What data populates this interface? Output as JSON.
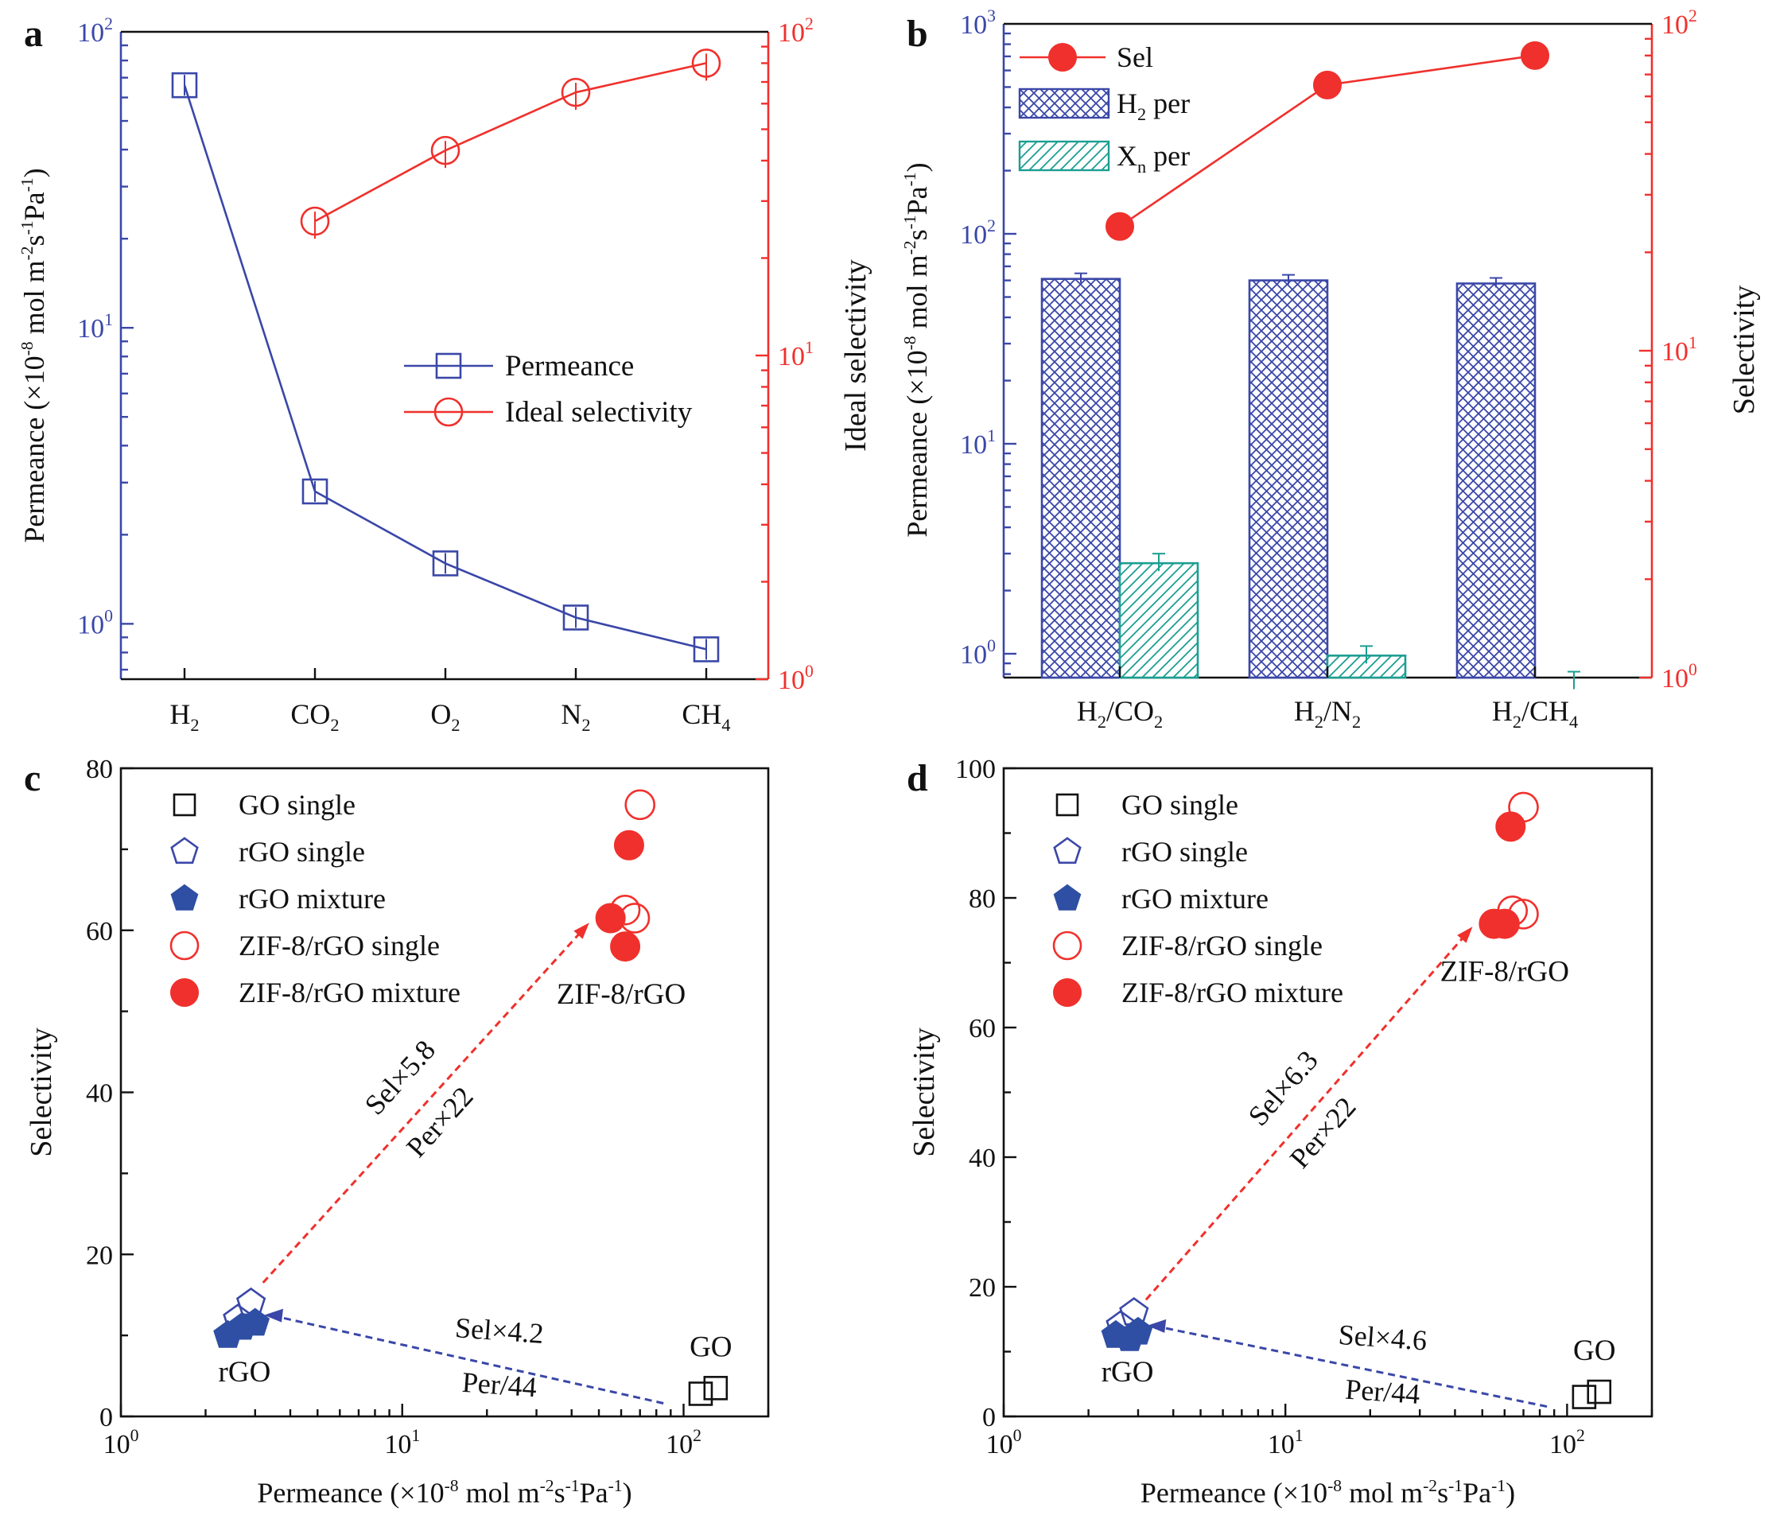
{
  "colors": {
    "blue": "#3A47A8",
    "red": "#F0302C",
    "teal": "#1C9E92",
    "black": "#111111",
    "bluefill": "#2E4FA3"
  },
  "chart_data": [
    {
      "panel": "a",
      "type": "line",
      "categories": [
        "H2",
        "CO2",
        "O2",
        "N2",
        "CH4"
      ],
      "category_labels": [
        [
          "H",
          "2"
        ],
        [
          "CO",
          "2"
        ],
        [
          "O",
          "2"
        ],
        [
          "N",
          "2"
        ],
        [
          "CH",
          "4"
        ]
      ],
      "left_axis": {
        "scale": "log",
        "range": [
          0.65,
          100
        ],
        "ticks": [
          {
            "v": 1,
            "exp": "0"
          },
          {
            "v": 10,
            "exp": "1"
          },
          {
            "v": 100,
            "exp": "2"
          }
        ],
        "label": {
          "pre": "Permeance (×10",
          "e1": "-8",
          "m1": " mol m",
          "e2": "-2",
          "m2": "s",
          "e3": "-1",
          "m3": "Pa",
          "e4": "-1",
          "post": ")"
        }
      },
      "right_axis": {
        "scale": "log",
        "range": [
          1,
          100
        ],
        "ticks": [
          {
            "v": 1,
            "exp": "0"
          },
          {
            "v": 10,
            "exp": "1"
          },
          {
            "v": 100,
            "exp": "2"
          }
        ],
        "label": "Ideal selectivity"
      },
      "series": [
        {
          "name": "Permeance",
          "axis": "left",
          "values": [
            66,
            2.8,
            1.6,
            1.05,
            0.82
          ],
          "marker": "open-square"
        },
        {
          "name": "Ideal selectivity",
          "axis": "right",
          "values": [
            null,
            26,
            43,
            65,
            80
          ],
          "marker": "open-circle"
        }
      ],
      "legend": "center-right"
    },
    {
      "panel": "b",
      "type": "bar",
      "categories": [
        "H2/CO2",
        "H2/N2",
        "H2/CH4"
      ],
      "category_labels": [
        [
          "H",
          "2",
          "/CO",
          "2"
        ],
        [
          "H",
          "2",
          "/N",
          "2"
        ],
        [
          "H",
          "2",
          "/CH",
          "4"
        ]
      ],
      "left_axis": {
        "scale": "log",
        "range": [
          0.77,
          1000
        ],
        "ticks": [
          {
            "v": 1,
            "exp": "0"
          },
          {
            "v": 10,
            "exp": "1"
          },
          {
            "v": 100,
            "exp": "2"
          },
          {
            "v": 1000,
            "exp": "3"
          }
        ],
        "label": {
          "pre": "Permeance (×10",
          "e1": "-8",
          "m1": " mol m",
          "e2": "-2",
          "m2": "s",
          "e3": "-1",
          "m3": "Pa",
          "e4": "-1",
          "post": ")"
        }
      },
      "right_axis": {
        "scale": "log",
        "range": [
          1,
          100
        ],
        "ticks": [
          {
            "v": 1,
            "exp": "0"
          },
          {
            "v": 10,
            "exp": "1"
          },
          {
            "v": 100,
            "exp": "2"
          }
        ],
        "label": "Selectivity"
      },
      "series": [
        {
          "name": "Sel",
          "axis": "right",
          "type": "line",
          "values": [
            24,
            65,
            80
          ],
          "marker": "filled-circle"
        },
        {
          "name": "H2 per",
          "axis": "left",
          "values": [
            61,
            60,
            58
          ],
          "pattern": "crosshatch"
        },
        {
          "name": "Xn per",
          "axis": "left",
          "values": [
            2.7,
            0.98,
            0.74
          ],
          "pattern": "diagonal"
        }
      ],
      "legend_labels": [
        [
          "Sel"
        ],
        [
          "H",
          "2",
          " per"
        ],
        [
          "X",
          "n",
          " per"
        ]
      ],
      "legend": "top-left"
    },
    {
      "panel": "c",
      "type": "scatter",
      "xscale": "log",
      "xlim": [
        1,
        200
      ],
      "ylim": [
        0,
        80
      ],
      "xticks": [
        {
          "v": 1,
          "exp": "0"
        },
        {
          "v": 10,
          "exp": "1"
        },
        {
          "v": 100,
          "exp": "2"
        }
      ],
      "yticks": [
        0,
        20,
        40,
        60,
        80
      ],
      "xlabel": {
        "pre": "Permeance (×10",
        "e1": "-8",
        "m1": " mol m",
        "e2": "-2",
        "m2": "s",
        "e3": "-1",
        "m3": "Pa",
        "e4": "-1",
        "post": ")"
      },
      "ylabel": "Selectivity",
      "series": [
        {
          "name": "GO single",
          "marker": "open-square",
          "points": [
            [
              115,
              2.8
            ],
            [
              130,
              3.5
            ]
          ]
        },
        {
          "name": "rGO single",
          "marker": "open-pentagon",
          "points": [
            [
              2.6,
              12
            ],
            [
              2.9,
              14
            ]
          ]
        },
        {
          "name": "rGO mixture",
          "marker": "filled-pentagon",
          "points": [
            [
              2.4,
              10
            ],
            [
              2.7,
              11
            ],
            [
              3.0,
              11.5
            ]
          ]
        },
        {
          "name": "ZIF-8/rGO single",
          "marker": "open-circle",
          "points": [
            [
              70,
              75.5
            ],
            [
              62,
              62.5
            ],
            [
              67,
              61.5
            ]
          ]
        },
        {
          "name": "ZIF-8/rGO mixture",
          "marker": "filled-circle",
          "points": [
            [
              64,
              70.5
            ],
            [
              55,
              61.5
            ],
            [
              62,
              58
            ]
          ]
        }
      ],
      "annotations": [
        "ZIF-8/rGO",
        "rGO",
        "GO",
        "Sel×5.8",
        "Per×22",
        "Sel×4.2",
        "Per/44"
      ]
    },
    {
      "panel": "d",
      "type": "scatter",
      "xscale": "log",
      "xlim": [
        1,
        200
      ],
      "ylim": [
        0,
        100
      ],
      "xticks": [
        {
          "v": 1,
          "exp": "0"
        },
        {
          "v": 10,
          "exp": "1"
        },
        {
          "v": 100,
          "exp": "2"
        }
      ],
      "yticks": [
        0,
        20,
        40,
        60,
        80,
        100
      ],
      "xlabel": {
        "pre": "Permeance (×10",
        "e1": "-8",
        "m1": " mol m",
        "e2": "-2",
        "m2": "s",
        "e3": "-1",
        "m3": "Pa",
        "e4": "-1",
        "post": ")"
      },
      "ylabel": "Selectivity",
      "series": [
        {
          "name": "GO single",
          "marker": "open-square",
          "points": [
            [
              115,
              3
            ],
            [
              130,
              3.8
            ]
          ]
        },
        {
          "name": "rGO single",
          "marker": "open-pentagon",
          "points": [
            [
              2.6,
              14
            ],
            [
              2.9,
              16
            ]
          ]
        },
        {
          "name": "rGO mixture",
          "marker": "filled-pentagon",
          "points": [
            [
              2.5,
              12.5
            ],
            [
              2.8,
              12
            ],
            [
              3.0,
              13
            ]
          ]
        },
        {
          "name": "ZIF-8/rGO single",
          "marker": "open-circle",
          "points": [
            [
              70,
              94
            ],
            [
              64,
              78
            ],
            [
              70,
              77.5
            ]
          ]
        },
        {
          "name": "ZIF-8/rGO mixture",
          "marker": "filled-circle",
          "points": [
            [
              63,
              91
            ],
            [
              55,
              76
            ],
            [
              60,
              76
            ]
          ]
        }
      ],
      "annotations": [
        "ZIF-8/rGO",
        "rGO",
        "GO",
        "Sel×6.3",
        "Per×22",
        "Sel×4.6",
        "Per/44"
      ]
    }
  ]
}
